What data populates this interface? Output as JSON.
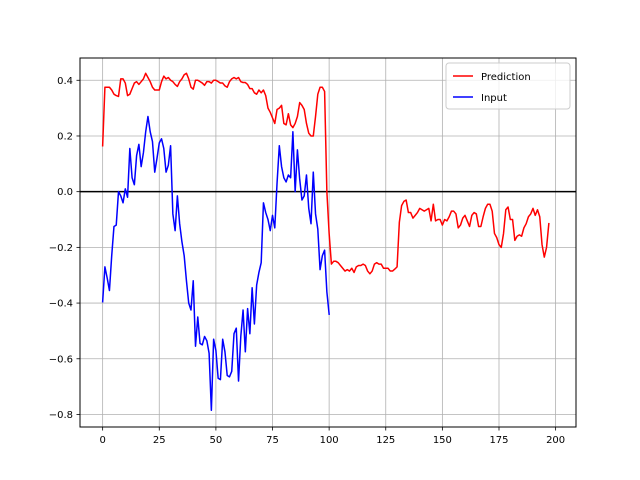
{
  "chart_data": {
    "type": "line",
    "title": "",
    "xlabel": "",
    "ylabel": "",
    "xlim": [
      -10,
      209
    ],
    "ylim": [
      -0.845,
      0.48
    ],
    "xticks": [
      0,
      25,
      50,
      75,
      100,
      125,
      150,
      175,
      200
    ],
    "yticks": [
      0.4,
      0.2,
      0.0,
      -0.2,
      -0.4,
      -0.6,
      -0.8
    ],
    "ytick_labels": [
      "0.4",
      "0.2",
      "0.0",
      "−0.2",
      "−0.4",
      "−0.6",
      "−0.8"
    ],
    "grid": true,
    "zero_line": true,
    "legend_position": "upper right",
    "series": [
      {
        "name": "Prediction",
        "color": "#ff0000",
        "x_start": 0,
        "values": [
          0.165,
          0.375,
          0.375,
          0.375,
          0.365,
          0.35,
          0.345,
          0.342,
          0.405,
          0.405,
          0.39,
          0.345,
          0.35,
          0.37,
          0.39,
          0.395,
          0.385,
          0.395,
          0.405,
          0.425,
          0.41,
          0.395,
          0.375,
          0.365,
          0.365,
          0.365,
          0.395,
          0.415,
          0.405,
          0.41,
          0.4,
          0.395,
          0.385,
          0.378,
          0.395,
          0.405,
          0.42,
          0.425,
          0.405,
          0.375,
          0.368,
          0.4,
          0.4,
          0.395,
          0.39,
          0.382,
          0.395,
          0.395,
          0.39,
          0.4,
          0.4,
          0.395,
          0.39,
          0.39,
          0.38,
          0.375,
          0.395,
          0.405,
          0.41,
          0.405,
          0.41,
          0.395,
          0.392,
          0.392,
          0.385,
          0.37,
          0.37,
          0.355,
          0.35,
          0.365,
          0.355,
          0.365,
          0.345,
          0.3,
          0.285,
          0.265,
          0.245,
          0.295,
          0.3,
          0.31,
          0.245,
          0.24,
          0.28,
          0.24,
          0.23,
          0.245,
          0.27,
          0.32,
          0.31,
          0.295,
          0.245,
          0.21,
          0.2,
          0.2,
          0.27,
          0.35,
          0.375,
          0.375,
          0.36,
          0.0,
          -0.15,
          -0.26,
          -0.25,
          -0.25,
          -0.255,
          -0.265,
          -0.275,
          -0.285,
          -0.28,
          -0.285,
          -0.275,
          -0.29,
          -0.27,
          -0.265,
          -0.265,
          -0.26,
          -0.265,
          -0.285,
          -0.295,
          -0.285,
          -0.26,
          -0.255,
          -0.26,
          -0.26,
          -0.275,
          -0.275,
          -0.275,
          -0.285,
          -0.285,
          -0.278,
          -0.27,
          -0.11,
          -0.05,
          -0.035,
          -0.03,
          -0.075,
          -0.075,
          -0.095,
          -0.085,
          -0.075,
          -0.06,
          -0.065,
          -0.07,
          -0.065,
          -0.06,
          -0.105,
          -0.045,
          -0.105,
          -0.1,
          -0.1,
          -0.12,
          -0.1,
          -0.105,
          -0.09,
          -0.07,
          -0.07,
          -0.08,
          -0.13,
          -0.12,
          -0.095,
          -0.085,
          -0.105,
          -0.125,
          -0.085,
          -0.075,
          -0.08,
          -0.125,
          -0.125,
          -0.09,
          -0.06,
          -0.045,
          -0.045,
          -0.07,
          -0.15,
          -0.165,
          -0.19,
          -0.2,
          -0.15,
          -0.065,
          -0.055,
          -0.1,
          -0.1,
          -0.175,
          -0.16,
          -0.155,
          -0.16,
          -0.13,
          -0.115,
          -0.09,
          -0.08,
          -0.06,
          -0.085,
          -0.065,
          -0.09,
          -0.19,
          -0.235,
          -0.2,
          -0.115
        ]
      },
      {
        "name": "Input",
        "color": "#0000ff",
        "x_start": 0,
        "values": [
          -0.395,
          -0.27,
          -0.31,
          -0.355,
          -0.23,
          -0.125,
          -0.12,
          0.0,
          -0.015,
          -0.04,
          0.01,
          -0.02,
          0.155,
          0.05,
          0.025,
          0.13,
          0.17,
          0.09,
          0.14,
          0.215,
          0.27,
          0.215,
          0.18,
          0.07,
          0.12,
          0.175,
          0.19,
          0.155,
          0.07,
          0.095,
          0.165,
          -0.08,
          -0.14,
          -0.015,
          -0.115,
          -0.18,
          -0.23,
          -0.32,
          -0.4,
          -0.425,
          -0.32,
          -0.555,
          -0.45,
          -0.545,
          -0.55,
          -0.52,
          -0.535,
          -0.58,
          -0.785,
          -0.53,
          -0.57,
          -0.67,
          -0.675,
          -0.53,
          -0.575,
          -0.66,
          -0.665,
          -0.645,
          -0.51,
          -0.49,
          -0.68,
          -0.52,
          -0.425,
          -0.575,
          -0.42,
          -0.51,
          -0.345,
          -0.475,
          -0.335,
          -0.29,
          -0.255,
          -0.04,
          -0.075,
          -0.1,
          -0.14,
          -0.085,
          -0.13,
          0.03,
          0.165,
          0.09,
          0.05,
          0.035,
          0.06,
          0.05,
          0.215,
          0.0,
          0.15,
          0.045,
          -0.03,
          -0.015,
          0.06,
          -0.06,
          -0.115,
          0.07,
          -0.08,
          -0.135,
          -0.28,
          -0.23,
          -0.21,
          -0.36,
          -0.44
        ]
      }
    ]
  }
}
